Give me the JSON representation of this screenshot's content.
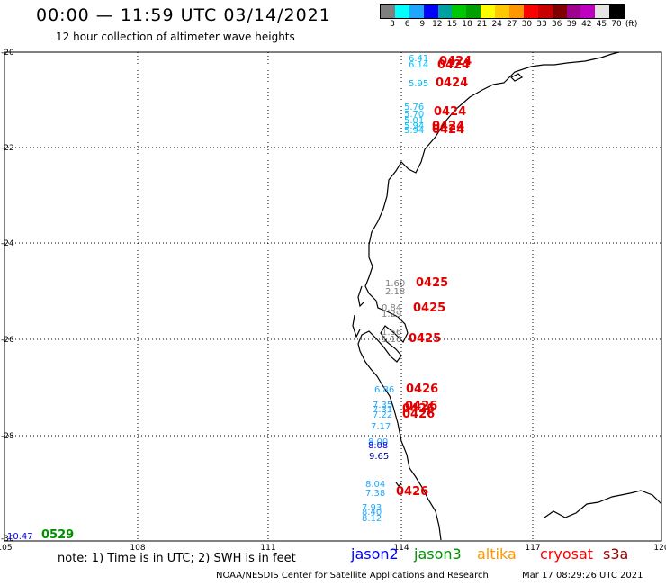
{
  "header": {
    "title": "00:00 — 11:59 UTC 03/14/2021",
    "subtitle": "12 hour collection of altimeter wave heights"
  },
  "color_scale": {
    "colors": [
      "#7f7f7f",
      "#00ffff",
      "#1fa7ff",
      "#0000ff",
      "#00a0a0",
      "#00c800",
      "#00a000",
      "#ffff00",
      "#ffc800",
      "#ff9600",
      "#ff0000",
      "#c80000",
      "#800000",
      "#a00090",
      "#c000c0",
      "#e4e4e4",
      "#000000"
    ],
    "labels": [
      "3",
      "6",
      "9",
      "12",
      "15",
      "18",
      "21",
      "24",
      "27",
      "30",
      "33",
      "36",
      "39",
      "42",
      "45",
      "70",
      "(ft)"
    ]
  },
  "axes": {
    "lat_labels": [
      "-20",
      "-22",
      "-24",
      "-26",
      "-28",
      "-30"
    ],
    "lon_labels": [
      "105",
      "108",
      "111",
      "114",
      "117",
      "120"
    ]
  },
  "observations": [
    {
      "value": "6.41",
      "color": "#00bfff",
      "time": "0424"
    },
    {
      "value": "6.14",
      "color": "#00bfff",
      "time": "0424"
    },
    {
      "value": "5.95",
      "color": "#00bfff",
      "time": "0424"
    },
    {
      "value": "5.76",
      "color": "#00bfff",
      "time": "0424"
    },
    {
      "value": "5.70",
      "color": "#00bfff",
      "time": ""
    },
    {
      "value": "5.01",
      "color": "#00bfff",
      "time": ""
    },
    {
      "value": "5.94",
      "color": "#00bfff",
      "time": "0424"
    },
    {
      "value": "5.94",
      "color": "#00bfff",
      "time": "0424"
    },
    {
      "value": "1.60",
      "color": "#7f7f7f",
      "time": "0425"
    },
    {
      "value": "2.18",
      "color": "#7f7f7f",
      "time": ""
    },
    {
      "value": "0.84",
      "color": "#7f7f7f",
      "time": "0425"
    },
    {
      "value": "1.29",
      "color": "#7f7f7f",
      "time": ""
    },
    {
      "value": "1.56",
      "color": "#7f7f7f",
      "time": "0425"
    },
    {
      "value": "1.16",
      "color": "#7f7f7f",
      "time": ""
    },
    {
      "value": "6.86",
      "color": "#1fa7ff",
      "time": "0426"
    },
    {
      "value": "7.35",
      "color": "#1fa7ff",
      "time": "0426"
    },
    {
      "value": "7.31",
      "color": "#1fa7ff",
      "time": "0426"
    },
    {
      "value": "7.22",
      "color": "#1fa7ff",
      "time": "0426"
    },
    {
      "value": "7.17",
      "color": "#1fa7ff",
      "time": ""
    },
    {
      "value": "8.00",
      "color": "#1fa7ff",
      "time": ""
    },
    {
      "value": "8.08",
      "color": "#0000ff",
      "time": ""
    },
    {
      "value": "9.65",
      "color": "#00008b",
      "time": ""
    },
    {
      "value": "8.04",
      "color": "#1fa7ff",
      "time": "0426"
    },
    {
      "value": "7.38",
      "color": "#1fa7ff",
      "time": ""
    },
    {
      "value": "7.93",
      "color": "#1fa7ff",
      "time": ""
    },
    {
      "value": "8.40",
      "color": "#1fa7ff",
      "time": ""
    },
    {
      "value": "8.12",
      "color": "#1fa7ff",
      "time": ""
    },
    {
      "value": "10.47",
      "color": "#0000ff",
      "time": "0529"
    }
  ],
  "footer": {
    "note": "note:  1) Time is in UTC;  2) SWH is in feet",
    "missions": [
      {
        "label": "jason2",
        "color": "#0000ff"
      },
      {
        "label": "jason3",
        "color": "#009000"
      },
      {
        "label": "altika",
        "color": "#ff9600"
      },
      {
        "label": "cryosat",
        "color": "#ff0000"
      },
      {
        "label": "s3a",
        "color": "#a00000"
      }
    ],
    "credit": "NOAA/NESDIS Center for Satellite Applications and Research",
    "timestamp": "Mar 17 08:29:26 UTC 2021"
  }
}
